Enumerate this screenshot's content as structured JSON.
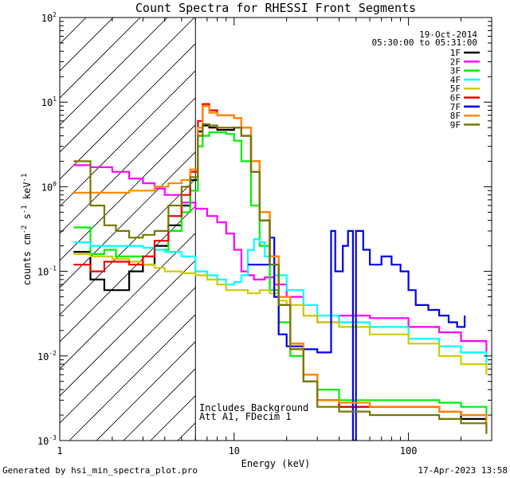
{
  "chart_data": {
    "type": "line",
    "title": "Count Spectra for RHESSI Front Segments",
    "xlabel": "Energy (keV)",
    "ylabel": "counts cm-2 s-1 keV-1",
    "x_scale": "log",
    "y_scale": "log",
    "xlim": [
      1,
      300
    ],
    "ylim": [
      0.001,
      100
    ],
    "x_tick_labels": [
      {
        "value": 1,
        "label": "1"
      },
      {
        "value": 10,
        "label": "10"
      },
      {
        "value": 100,
        "label": "100"
      }
    ],
    "y_tick_labels": [
      {
        "value": 100,
        "base": "10",
        "exp": "2"
      },
      {
        "value": 10,
        "base": "10",
        "exp": "1"
      },
      {
        "value": 1,
        "base": "10",
        "exp": "0"
      },
      {
        "value": 0.1,
        "base": "10",
        "exp": "-1"
      },
      {
        "value": 0.01,
        "base": "10",
        "exp": "-2"
      },
      {
        "value": 0.001,
        "base": "10",
        "exp": "-3"
      }
    ],
    "date_label": "19-Oct-2014",
    "time_range_label": "05:30:00 to 05:31:00",
    "hatched_below_keV": 6,
    "annotations": [
      "Includes Background",
      "Att A1, FDecim 1"
    ],
    "footer_left": "Generated by hsi_min_spectra_plot.pro",
    "footer_right": "17-Apr-2023 13:58",
    "series": [
      {
        "name": "1F",
        "color": "#000000",
        "points": [
          [
            1.2,
            0.17
          ],
          [
            1.5,
            0.08
          ],
          [
            1.8,
            0.06
          ],
          [
            2.1,
            0.06
          ],
          [
            2.5,
            0.1
          ],
          [
            3,
            0.12
          ],
          [
            3.5,
            0.2
          ],
          [
            4.2,
            0.35
          ],
          [
            5,
            0.6
          ],
          [
            5.6,
            1.2
          ],
          [
            6.2,
            4.5
          ],
          [
            6.6,
            5.3
          ],
          [
            7.2,
            5
          ],
          [
            8,
            4.7
          ],
          [
            9,
            4.7
          ],
          [
            10,
            5
          ],
          [
            11,
            4
          ],
          [
            12.5,
            1.5
          ],
          [
            14,
            0.4
          ],
          [
            16,
            0.12
          ],
          [
            18,
            0.04
          ],
          [
            21,
            0.012
          ],
          [
            25,
            0.005
          ],
          [
            30,
            0.003
          ],
          [
            40,
            0.0025
          ],
          [
            60,
            0.0025
          ],
          [
            100,
            0.0025
          ],
          [
            150,
            0.0022
          ],
          [
            200,
            0.0018
          ],
          [
            280,
            0.0015
          ]
        ]
      },
      {
        "name": "2F",
        "color": "#ff00ff",
        "points": [
          [
            1.2,
            1.8
          ],
          [
            1.5,
            1.7
          ],
          [
            2,
            1.5
          ],
          [
            2.5,
            1.25
          ],
          [
            3,
            1.1
          ],
          [
            3.5,
            0.95
          ],
          [
            4,
            0.8
          ],
          [
            5,
            0.65
          ],
          [
            6,
            0.55
          ],
          [
            7,
            0.45
          ],
          [
            8,
            0.38
          ],
          [
            9,
            0.28
          ],
          [
            10,
            0.18
          ],
          [
            11,
            0.1
          ],
          [
            12,
            0.09
          ],
          [
            13,
            0.08
          ],
          [
            15,
            0.085
          ],
          [
            17,
            0.07
          ],
          [
            20,
            0.05
          ],
          [
            25,
            0.03
          ],
          [
            30,
            0.025
          ],
          [
            40,
            0.03
          ],
          [
            60,
            0.028
          ],
          [
            100,
            0.022
          ],
          [
            150,
            0.019
          ],
          [
            200,
            0.015
          ],
          [
            280,
            0.011
          ]
        ]
      },
      {
        "name": "3F",
        "color": "#00ee00",
        "points": [
          [
            1.2,
            0.33
          ],
          [
            1.5,
            0.16
          ],
          [
            1.8,
            0.18
          ],
          [
            2.1,
            0.15
          ],
          [
            2.5,
            0.15
          ],
          [
            3,
            0.15
          ],
          [
            3.5,
            0.18
          ],
          [
            4.2,
            0.3
          ],
          [
            5,
            0.5
          ],
          [
            5.6,
            0.9
          ],
          [
            6.2,
            3
          ],
          [
            6.6,
            4
          ],
          [
            7.2,
            4.4
          ],
          [
            8,
            4.4
          ],
          [
            9,
            4.2
          ],
          [
            10,
            3.5
          ],
          [
            11,
            2
          ],
          [
            12.5,
            0.6
          ],
          [
            14,
            0.2
          ],
          [
            16,
            0.06
          ],
          [
            18,
            0.025
          ],
          [
            21,
            0.01
          ],
          [
            25,
            0.005
          ],
          [
            30,
            0.004
          ],
          [
            40,
            0.003
          ],
          [
            60,
            0.003
          ],
          [
            100,
            0.003
          ],
          [
            150,
            0.0028
          ],
          [
            200,
            0.0025
          ],
          [
            280,
            0.002
          ]
        ]
      },
      {
        "name": "4F",
        "color": "#00ffff",
        "points": [
          [
            1.2,
            0.22
          ],
          [
            1.5,
            0.2
          ],
          [
            2,
            0.2
          ],
          [
            2.5,
            0.2
          ],
          [
            3,
            0.19
          ],
          [
            3.5,
            0.18
          ],
          [
            4,
            0.17
          ],
          [
            5,
            0.15
          ],
          [
            6,
            0.1
          ],
          [
            7,
            0.09
          ],
          [
            8,
            0.08
          ],
          [
            9,
            0.07
          ],
          [
            10,
            0.075
          ],
          [
            11,
            0.09
          ],
          [
            12,
            0.18
          ],
          [
            13,
            0.24
          ],
          [
            14,
            0.22
          ],
          [
            15,
            0.15
          ],
          [
            17,
            0.09
          ],
          [
            20,
            0.06
          ],
          [
            25,
            0.04
          ],
          [
            30,
            0.03
          ],
          [
            40,
            0.025
          ],
          [
            60,
            0.022
          ],
          [
            100,
            0.016
          ],
          [
            150,
            0.013
          ],
          [
            200,
            0.011
          ],
          [
            280,
            0.008
          ]
        ]
      },
      {
        "name": "5F",
        "color": "#cccc00",
        "points": [
          [
            1.2,
            0.16
          ],
          [
            1.5,
            0.15
          ],
          [
            2,
            0.14
          ],
          [
            2.5,
            0.13
          ],
          [
            3,
            0.12
          ],
          [
            3.5,
            0.11
          ],
          [
            4,
            0.1
          ],
          [
            5,
            0.095
          ],
          [
            6,
            0.09
          ],
          [
            7,
            0.08
          ],
          [
            8,
            0.07
          ],
          [
            9,
            0.06
          ],
          [
            10,
            0.06
          ],
          [
            12,
            0.055
          ],
          [
            14,
            0.06
          ],
          [
            16,
            0.055
          ],
          [
            18,
            0.045
          ],
          [
            20,
            0.04
          ],
          [
            25,
            0.03
          ],
          [
            30,
            0.025
          ],
          [
            40,
            0.022
          ],
          [
            60,
            0.018
          ],
          [
            100,
            0.014
          ],
          [
            150,
            0.01
          ],
          [
            200,
            0.008
          ],
          [
            280,
            0.006
          ]
        ]
      },
      {
        "name": "6F",
        "color": "#ee0000",
        "points": [
          [
            1.2,
            0.12
          ],
          [
            1.5,
            0.1
          ],
          [
            1.8,
            0.13
          ],
          [
            2.1,
            0.13
          ],
          [
            2.5,
            0.12
          ],
          [
            3,
            0.15
          ],
          [
            3.5,
            0.23
          ],
          [
            4.2,
            0.45
          ],
          [
            5,
            0.8
          ],
          [
            5.6,
            1.5
          ],
          [
            6.2,
            6
          ],
          [
            6.6,
            9.5
          ],
          [
            7.2,
            8
          ],
          [
            8,
            7
          ],
          [
            9,
            7
          ],
          [
            10,
            6.5
          ],
          [
            11,
            5
          ],
          [
            12.5,
            2
          ],
          [
            14,
            0.5
          ],
          [
            16,
            0.15
          ],
          [
            18,
            0.05
          ],
          [
            21,
            0.014
          ],
          [
            25,
            0.006
          ],
          [
            30,
            0.003
          ],
          [
            40,
            0.0025
          ],
          [
            60,
            0.0025
          ],
          [
            100,
            0.0025
          ],
          [
            150,
            0.0022
          ],
          [
            200,
            0.002
          ],
          [
            280,
            0.0015
          ]
        ]
      },
      {
        "name": "7F",
        "color": "#0000ee",
        "points": [
          [
            12,
            0.12
          ],
          [
            15,
            0.12
          ],
          [
            16,
            0.25
          ],
          [
            17,
            0.05
          ],
          [
            18,
            0.018
          ],
          [
            20,
            0.013
          ],
          [
            25,
            0.012
          ],
          [
            30,
            0.011
          ],
          [
            35,
            0.011
          ],
          [
            36,
            0.3
          ],
          [
            38,
            0.1
          ],
          [
            42,
            0.2
          ],
          [
            45,
            0.3
          ],
          [
            48,
            0.001
          ],
          [
            50,
            0.3
          ],
          [
            55,
            0.18
          ],
          [
            60,
            0.12
          ],
          [
            70,
            0.15
          ],
          [
            80,
            0.12
          ],
          [
            90,
            0.1
          ],
          [
            100,
            0.06
          ],
          [
            110,
            0.04
          ],
          [
            130,
            0.035
          ],
          [
            150,
            0.03
          ],
          [
            170,
            0.025
          ],
          [
            190,
            0.022
          ],
          [
            210,
            0.03
          ]
        ]
      },
      {
        "name": "8F",
        "color": "#ff8800",
        "points": [
          [
            1.2,
            0.85
          ],
          [
            1.5,
            0.85
          ],
          [
            2,
            0.85
          ],
          [
            2.5,
            0.9
          ],
          [
            3,
            0.9
          ],
          [
            3.5,
            1.0
          ],
          [
            4.2,
            1.1
          ],
          [
            5,
            1.2
          ],
          [
            5.6,
            1.6
          ],
          [
            6.2,
            5
          ],
          [
            6.6,
            9
          ],
          [
            7.2,
            7.5
          ],
          [
            8,
            7
          ],
          [
            9,
            7
          ],
          [
            10,
            6.5
          ],
          [
            11,
            5
          ],
          [
            12.5,
            2
          ],
          [
            14,
            0.5
          ],
          [
            16,
            0.15
          ],
          [
            18,
            0.05
          ],
          [
            21,
            0.014
          ],
          [
            25,
            0.006
          ],
          [
            30,
            0.003
          ],
          [
            40,
            0.0028
          ],
          [
            60,
            0.0025
          ],
          [
            100,
            0.0025
          ],
          [
            150,
            0.0022
          ],
          [
            200,
            0.002
          ],
          [
            280,
            0.0015
          ]
        ]
      },
      {
        "name": "9F",
        "color": "#777700",
        "points": [
          [
            1.2,
            2.0
          ],
          [
            1.5,
            0.6
          ],
          [
            1.8,
            0.35
          ],
          [
            2.1,
            0.3
          ],
          [
            2.5,
            0.25
          ],
          [
            3,
            0.27
          ],
          [
            3.5,
            0.3
          ],
          [
            4.2,
            0.6
          ],
          [
            5,
            1.0
          ],
          [
            5.6,
            1.3
          ],
          [
            6.2,
            4
          ],
          [
            6.6,
            5.5
          ],
          [
            7.2,
            5.3
          ],
          [
            8,
            5
          ],
          [
            9,
            5
          ],
          [
            10,
            5
          ],
          [
            11,
            4
          ],
          [
            12.5,
            1.5
          ],
          [
            14,
            0.4
          ],
          [
            16,
            0.12
          ],
          [
            18,
            0.04
          ],
          [
            21,
            0.012
          ],
          [
            25,
            0.005
          ],
          [
            30,
            0.0025
          ],
          [
            40,
            0.0022
          ],
          [
            60,
            0.002
          ],
          [
            100,
            0.002
          ],
          [
            150,
            0.0018
          ],
          [
            200,
            0.0016
          ],
          [
            280,
            0.0012
          ]
        ]
      }
    ]
  }
}
